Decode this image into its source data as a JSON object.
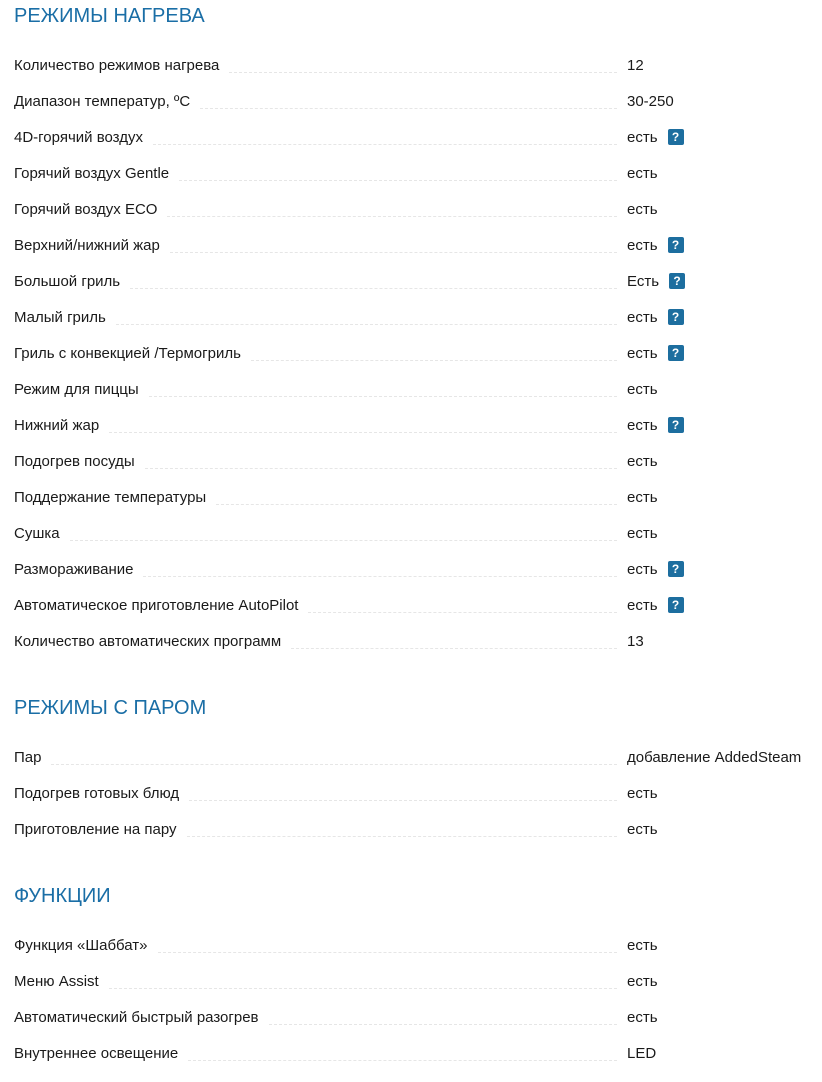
{
  "sections": [
    {
      "title": "РЕЖИМЫ НАГРЕВА",
      "rows": [
        {
          "label": "Количество режимов нагрева",
          "value": "12",
          "help": false
        },
        {
          "label": "Диапазон температур, ºС",
          "value": "30-250",
          "help": false
        },
        {
          "label": "4D-горячий воздух",
          "value": "есть",
          "help": true
        },
        {
          "label": "Горячий воздух Gentle",
          "value": "есть",
          "help": false
        },
        {
          "label": "Горячий воздух ECO",
          "value": "есть",
          "help": false
        },
        {
          "label": "Верхний/нижний жар",
          "value": "есть",
          "help": true
        },
        {
          "label": "Большой гриль",
          "value": "Есть",
          "help": true
        },
        {
          "label": "Малый гриль",
          "value": "есть",
          "help": true
        },
        {
          "label": "Гриль с конвекцией /Термогриль",
          "value": "есть",
          "help": true
        },
        {
          "label": "Режим для пиццы",
          "value": "есть",
          "help": false
        },
        {
          "label": "Нижний жар",
          "value": "есть",
          "help": true
        },
        {
          "label": "Подогрев посуды",
          "value": "есть",
          "help": false
        },
        {
          "label": "Поддержание температуры",
          "value": "есть",
          "help": false
        },
        {
          "label": "Сушка",
          "value": "есть",
          "help": false
        },
        {
          "label": "Размораживание",
          "value": "есть",
          "help": true
        },
        {
          "label": "Автоматическое приготовление AutoPilot",
          "value": "есть",
          "help": true
        },
        {
          "label": "Количество автоматических программ",
          "value": "13",
          "help": false
        }
      ]
    },
    {
      "title": "РЕЖИМЫ С ПАРОМ",
      "rows": [
        {
          "label": "Пар",
          "value": "добавление AddedSteam",
          "help": false
        },
        {
          "label": "Подогрев готовых блюд",
          "value": "есть",
          "help": false
        },
        {
          "label": "Приготовление на пару",
          "value": "есть",
          "help": false
        }
      ]
    },
    {
      "title": "ФУНКЦИИ",
      "rows": [
        {
          "label": "Функция «Шаббат»",
          "value": "есть",
          "help": false
        },
        {
          "label": "Меню Assist",
          "value": "есть",
          "help": false
        },
        {
          "label": "Автоматический быстрый разогрев",
          "value": "есть",
          "help": false
        },
        {
          "label": "Внутреннее освещение",
          "value": "LED",
          "help": false
        }
      ]
    }
  ],
  "help_icon": {
    "name": "question-icon",
    "glyph": "?",
    "color": "#1d6e9f"
  },
  "accent_color": "#1a6ea6"
}
